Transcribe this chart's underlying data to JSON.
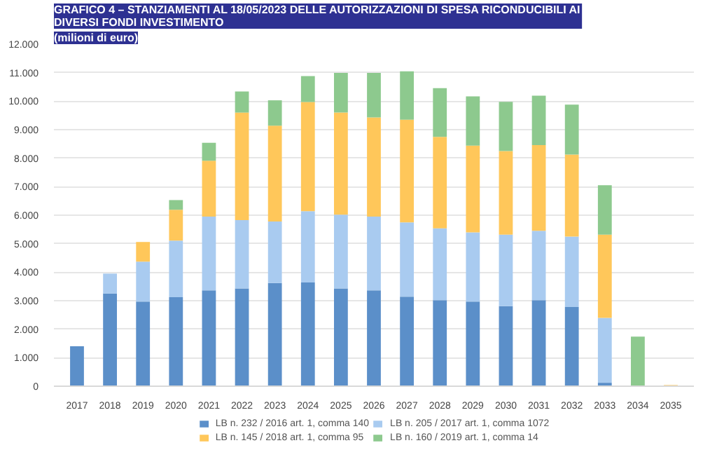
{
  "chart_data": {
    "type": "bar",
    "title": "GRAFICO 4 – STANZIAMENTI AL 18/05/2023 DELLE AUTORIZZAZIONI DI SPESA RICONDUCIBILI AI DIVERSI FONDI INVESTIMENTO",
    "subtitle": "(milioni di euro)",
    "categories": [
      "2017",
      "2018",
      "2019",
      "2020",
      "2021",
      "2022",
      "2023",
      "2024",
      "2025",
      "2026",
      "2027",
      "2028",
      "2029",
      "2030",
      "2031",
      "2032",
      "2033",
      "2034",
      "2035"
    ],
    "stacked": true,
    "series": [
      {
        "name": "LB n. 232 / 2016 art. 1, comma 140",
        "color": "#5b8fc9",
        "values": [
          1400,
          3250,
          2970,
          3120,
          3360,
          3430,
          3620,
          3640,
          3430,
          3360,
          3140,
          3020,
          2970,
          2810,
          3020,
          2780,
          120,
          0,
          0
        ]
      },
      {
        "name": "LB n. 205 / 2017 art. 1, comma 1072",
        "color": "#a9cbf0",
        "values": [
          0,
          700,
          1400,
          1990,
          2590,
          2400,
          2160,
          2500,
          2590,
          2590,
          2610,
          2520,
          2430,
          2510,
          2430,
          2470,
          2280,
          0,
          0
        ]
      },
      {
        "name": "LB n. 145 / 2018 art. 1, comma 95",
        "color": "#ffc75a",
        "values": [
          0,
          0,
          690,
          1080,
          1960,
          3770,
          3360,
          3830,
          3580,
          3480,
          3600,
          3210,
          3040,
          2930,
          3010,
          2880,
          2920,
          null,
          40
        ]
      },
      {
        "name": "LB n. 160 / 2019 art. 1, comma 14",
        "color": "#8dc98e",
        "values": [
          0,
          0,
          0,
          340,
          630,
          740,
          890,
          910,
          1390,
          1560,
          1700,
          1710,
          1730,
          1730,
          1730,
          1750,
          1730,
          1740,
          0
        ]
      }
    ],
    "ylim": [
      0,
      12000
    ],
    "yticks": [
      {
        "value": 0,
        "label": "0"
      },
      {
        "value": 1000,
        "label": "1.000"
      },
      {
        "value": 2000,
        "label": "2.000"
      },
      {
        "value": 3000,
        "label": "3.000"
      },
      {
        "value": 4000,
        "label": "4.000"
      },
      {
        "value": 5000,
        "label": "5.000"
      },
      {
        "value": 6000,
        "label": "6.000"
      },
      {
        "value": 7000,
        "label": "7.000"
      },
      {
        "value": 8000,
        "label": "8.000"
      },
      {
        "value": 9000,
        "label": "9.000"
      },
      {
        "value": 10000,
        "label": "10.000"
      },
      {
        "value": 11000,
        "label": "11.000"
      },
      {
        "value": 12000,
        "label": "12.000"
      }
    ],
    "grid": "y",
    "legend": "bottom"
  }
}
